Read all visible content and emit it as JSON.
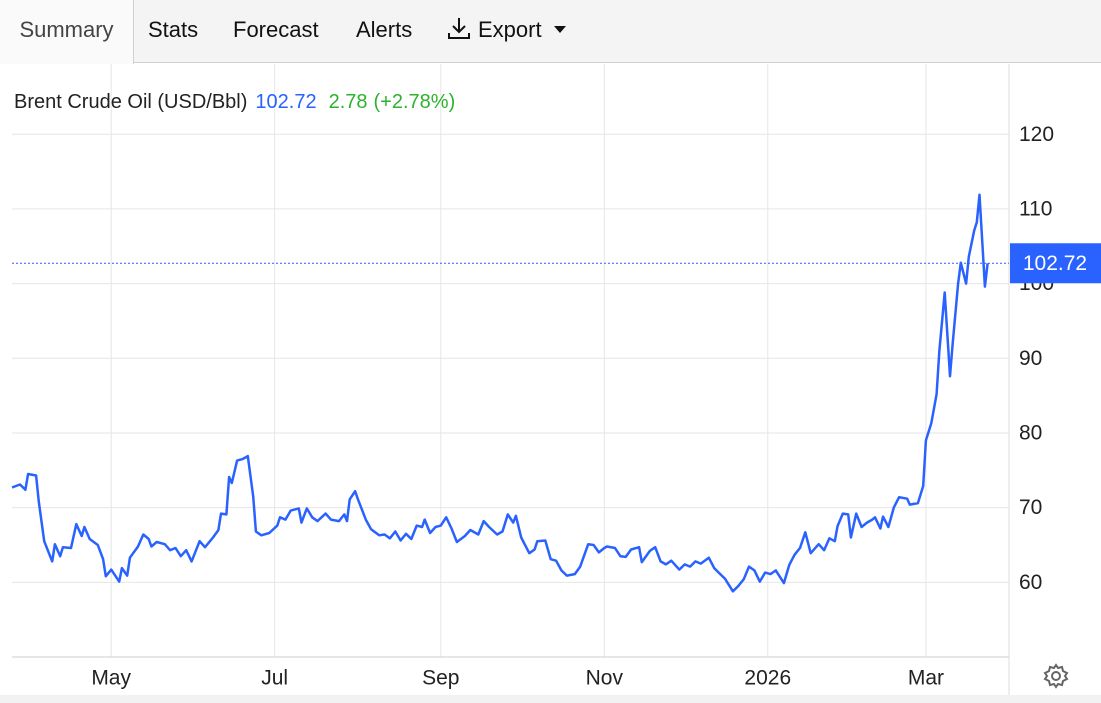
{
  "tabs": [
    "Summary",
    "Stats",
    "Forecast",
    "Alerts",
    "Export"
  ],
  "chart_data": {
    "type": "line",
    "legend": {
      "last_value": 102.72,
      "change": 2.78,
      "change_percent": {
        "value": 2.78,
        "label": "(+2.78%)"
      }
    },
    "price_tag": 102.72,
    "x": [
      0,
      3,
      5,
      6,
      9,
      10,
      12,
      15,
      16,
      18,
      19,
      22,
      24,
      26,
      27,
      29,
      32,
      34,
      35,
      37,
      40,
      41,
      43,
      44,
      47,
      49,
      51,
      52,
      54,
      57,
      59,
      61,
      63,
      65,
      67,
      70,
      72,
      75,
      77,
      78,
      80,
      81,
      82,
      84,
      86,
      88,
      90,
      91,
      93,
      96,
      99,
      100,
      102,
      104,
      107,
      108,
      110,
      112,
      114,
      117,
      119,
      122,
      124,
      125,
      126,
      128,
      129,
      132,
      134,
      137,
      139,
      141,
      143,
      145,
      147,
      149,
      151,
      153,
      154,
      156,
      158,
      160,
      162,
      164,
      166,
      169,
      171,
      174,
      176,
      178,
      181,
      183,
      185,
      187,
      188,
      190,
      193,
      195,
      196,
      199,
      201,
      203,
      205,
      207,
      210,
      212,
      215,
      217,
      219,
      221,
      222,
      225,
      227,
      229,
      231,
      234,
      235,
      238,
      240,
      242,
      244,
      246,
      249,
      251,
      253,
      255,
      257,
      260,
      262,
      264,
      266,
      269,
      271,
      273,
      275,
      277,
      279,
      281,
      283,
      285,
      288,
      290,
      292,
      294,
      296,
      298,
      300,
      301,
      303,
      305,
      307,
      308,
      310,
      312,
      313,
      315,
      317,
      319,
      321,
      322,
      324,
      325,
      327,
      329,
      331,
      334,
      335,
      338,
      340,
      341,
      343,
      345,
      346,
      348,
      350,
      351,
      353,
      354,
      356,
      357,
      359,
      360,
      361,
      363,
      364
    ],
    "series": [
      {
        "name": "Brent Crude Oil (USD/Bbl)",
        "color": "#2962ff",
        "values": [
          72.7,
          73.1,
          72.4,
          74.5,
          74.3,
          70.8,
          65.5,
          62.8,
          65.1,
          63.5,
          64.7,
          64.6,
          67.8,
          66.2,
          67.4,
          65.8,
          65.0,
          63.1,
          60.8,
          61.7,
          60.1,
          61.9,
          60.9,
          63.3,
          64.8,
          66.4,
          65.8,
          64.8,
          65.4,
          65.1,
          64.3,
          64.6,
          63.5,
          64.3,
          62.8,
          65.5,
          64.7,
          66.0,
          67.0,
          69.2,
          69.1,
          74.1,
          73.3,
          76.3,
          76.5,
          76.9,
          71.5,
          66.8,
          66.3,
          66.6,
          67.6,
          68.7,
          68.4,
          69.6,
          69.9,
          68.0,
          69.9,
          68.7,
          68.2,
          69.2,
          68.4,
          68.2,
          69.1,
          68.2,
          71.1,
          72.2,
          71.2,
          68.4,
          67.1,
          66.3,
          66.4,
          65.9,
          66.8,
          65.6,
          66.5,
          65.8,
          67.6,
          67.4,
          68.4,
          66.6,
          67.4,
          67.6,
          68.7,
          67.2,
          65.4,
          66.2,
          67.0,
          66.4,
          68.2,
          67.4,
          66.4,
          66.8,
          69.1,
          68.0,
          68.9,
          66.0,
          63.9,
          64.4,
          65.5,
          65.6,
          63.1,
          62.9,
          61.6,
          60.9,
          61.1,
          62.1,
          65.1,
          65.0,
          64.0,
          64.6,
          64.8,
          64.6,
          63.5,
          63.4,
          64.4,
          64.7,
          62.7,
          64.2,
          64.7,
          62.8,
          62.4,
          62.9,
          61.7,
          62.4,
          62.1,
          62.8,
          62.5,
          63.3,
          61.9,
          61.2,
          60.5,
          58.8,
          59.5,
          60.4,
          62.1,
          61.6,
          60.1,
          61.3,
          61.1,
          61.6,
          59.9,
          62.3,
          63.7,
          64.6,
          66.7,
          63.9,
          64.7,
          65.1,
          64.3,
          65.9,
          65.5,
          67.5,
          69.2,
          69.1,
          66.0,
          69.2,
          67.4,
          68.0,
          68.4,
          68.7,
          67.2,
          68.8,
          67.4,
          70.0,
          71.4,
          71.2,
          70.4,
          70.6,
          72.9,
          79.0,
          81.3,
          85.2,
          90.9,
          98.8,
          87.6,
          92.0,
          100.0,
          102.8,
          100.0,
          103.6,
          107.1,
          108.2,
          111.9,
          99.6,
          102.72
        ]
      }
    ],
    "xlim": [
      0,
      372
    ],
    "xticks": [
      {
        "value": 37,
        "label": "May"
      },
      {
        "value": 98,
        "label": "Jul"
      },
      {
        "value": 160,
        "label": "Sep"
      },
      {
        "value": 221,
        "label": "Nov"
      },
      {
        "value": 282,
        "label": "2026"
      },
      {
        "value": 341,
        "label": "Mar"
      }
    ],
    "ylim": [
      50,
      129.4
    ],
    "yticks": [
      60,
      70,
      80,
      90,
      100,
      110,
      120
    ],
    "grid": true
  }
}
